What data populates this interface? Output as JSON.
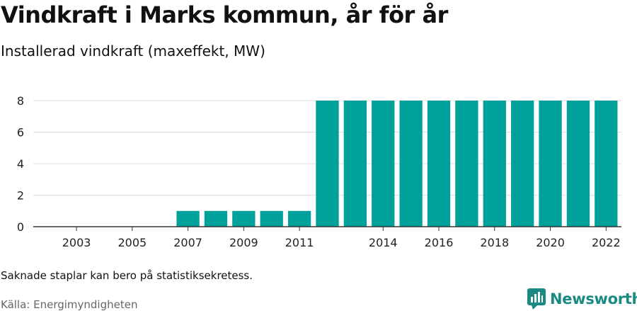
{
  "header": {
    "title": "Vindkraft i Marks kommun, år för år",
    "subtitle": "Installerad vindkraft (maxeffekt, MW)"
  },
  "footer": {
    "note": "Saknade staplar kan bero på statistiksekretess.",
    "source": "Källa: Energimyndigheten",
    "brand": "Newsworthy"
  },
  "colors": {
    "bar": "#00a19a",
    "brand": "#1a8a82"
  },
  "chart_data": {
    "type": "bar",
    "categories": [
      "2002",
      "2003",
      "2004",
      "2005",
      "2006",
      "2007",
      "2008",
      "2009",
      "2010",
      "2011",
      "2012",
      "2013",
      "2014",
      "2015",
      "2016",
      "2017",
      "2018",
      "2019",
      "2020",
      "2021",
      "2022"
    ],
    "values": [
      null,
      null,
      null,
      null,
      null,
      1,
      1,
      1,
      1,
      1,
      8,
      8,
      8,
      8,
      8,
      8,
      8,
      8,
      8,
      8,
      8
    ],
    "x_tick_labels": [
      "2003",
      "2005",
      "2007",
      "2009",
      "2011",
      "2014",
      "2016",
      "2018",
      "2020",
      "2022"
    ],
    "y_ticks": [
      0,
      2,
      4,
      6,
      8
    ],
    "ylim": [
      0,
      8.3
    ],
    "grid": true
  }
}
